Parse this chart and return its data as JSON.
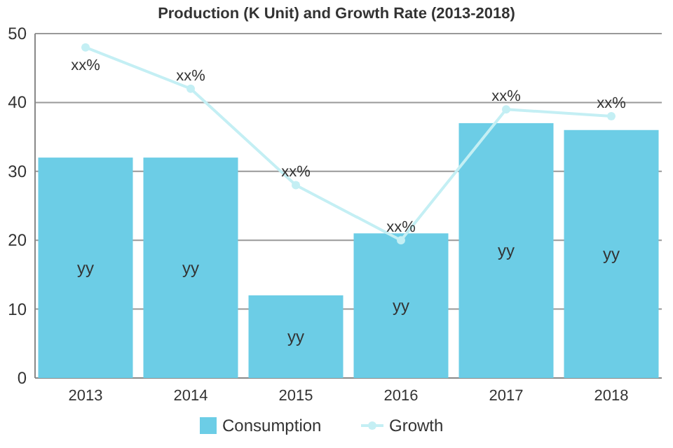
{
  "chart_data": {
    "type": "bar",
    "title": "Production (K Unit) and Growth Rate (2013-2018)",
    "categories": [
      "2013",
      "2014",
      "2015",
      "2016",
      "2017",
      "2018"
    ],
    "series": [
      {
        "name": "Consumption",
        "color": "#6ccde6",
        "values": [
          32,
          32,
          12,
          21,
          37,
          36
        ],
        "value_labels": [
          "yy",
          "yy",
          "yy",
          "yy",
          "yy",
          "yy"
        ]
      },
      {
        "name": "Growth",
        "type": "line",
        "color": "#c4eff4",
        "values": [
          48,
          42,
          28,
          20,
          39,
          38
        ],
        "value_labels": [
          "xx%",
          "xx%",
          "xx%",
          "xx%",
          "xx%",
          "xx%"
        ],
        "marker": "circle"
      }
    ],
    "ylim": [
      0,
      50
    ],
    "yticks": [
      0,
      10,
      20,
      30,
      40,
      50
    ],
    "grid": "y",
    "legend": "bottom"
  }
}
